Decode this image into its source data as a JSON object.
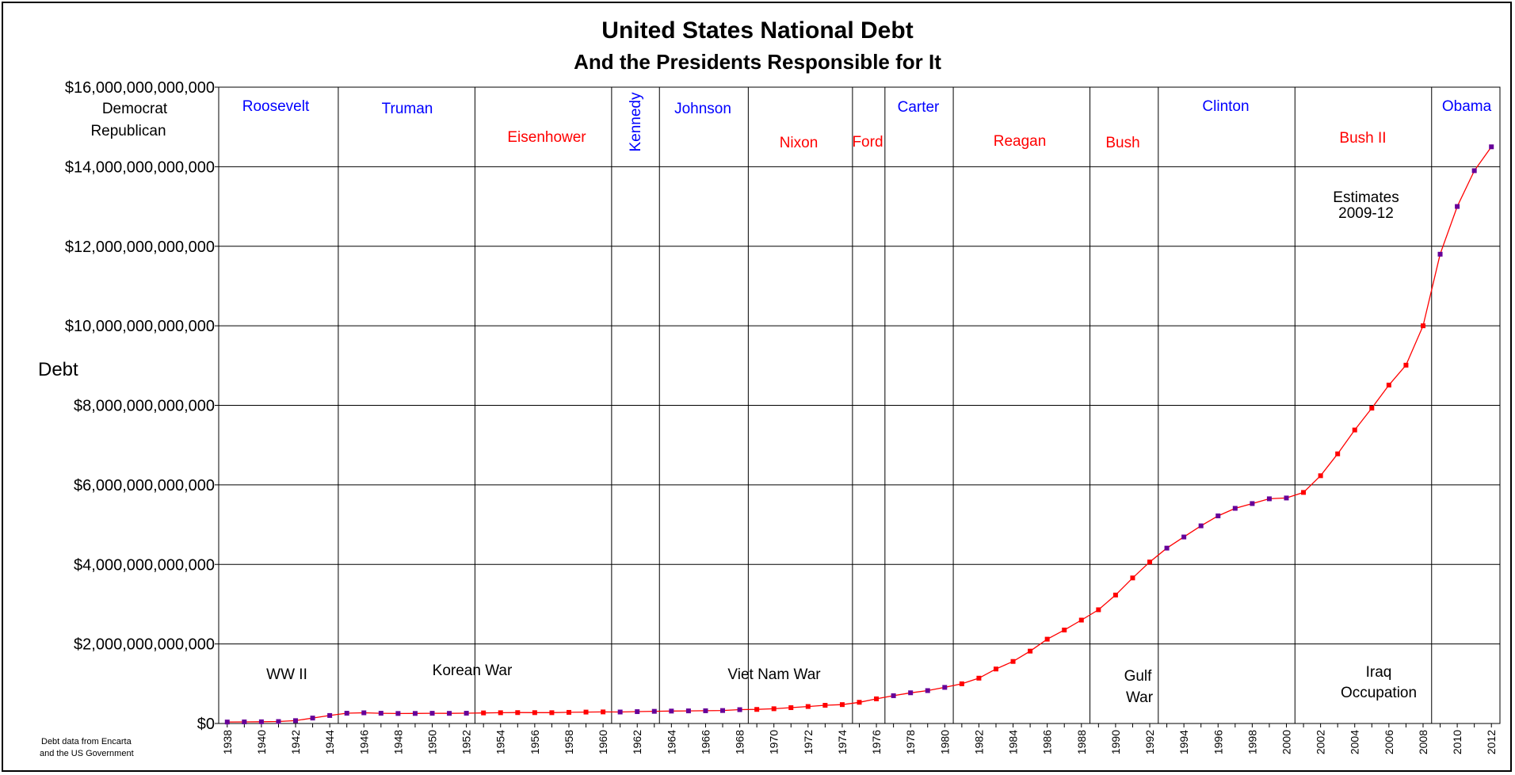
{
  "colors": {
    "democrat": "#0000ff",
    "republican": "#ff0000",
    "line": "#ff0000",
    "point_red": "#ff0000",
    "point_purple": "#660099",
    "grid": "#000000"
  },
  "chart_data": {
    "type": "line",
    "title": "United States National Debt",
    "subtitle": "And the Presidents Responsible for It",
    "ylabel": "Debt",
    "ylim": [
      0,
      16000000000000
    ],
    "xlim": [
      1937.5,
      2012.5
    ],
    "grid": true,
    "y_ticks": [
      {
        "value": 0,
        "label": "$0"
      },
      {
        "value": 2000000000000,
        "label": "$2,000,000,000,000"
      },
      {
        "value": 4000000000000,
        "label": "$4,000,000,000,000"
      },
      {
        "value": 6000000000000,
        "label": "$6,000,000,000,000"
      },
      {
        "value": 8000000000000,
        "label": "$8,000,000,000,000"
      },
      {
        "value": 10000000000000,
        "label": "$10,000,000,000,000"
      },
      {
        "value": 12000000000000,
        "label": "$12,000,000,000,000"
      },
      {
        "value": 14000000000000,
        "label": "$14,000,000,000,000"
      },
      {
        "value": 16000000000000,
        "label": "$16,000,000,000,000"
      }
    ],
    "x_ticks": [
      "1938",
      "1940",
      "1942",
      "1944",
      "1946",
      "1948",
      "1950",
      "1952",
      "1954",
      "1956",
      "1958",
      "1960",
      "1962",
      "1964",
      "1966",
      "1968",
      "1970",
      "1972",
      "1974",
      "1976",
      "1978",
      "1980",
      "1982",
      "1984",
      "1986",
      "1988",
      "1990",
      "1992",
      "1994",
      "1996",
      "1998",
      "2000",
      "2002",
      "2004",
      "2006",
      "2008",
      "2010",
      "2012"
    ],
    "series": [
      {
        "x": [
          1938,
          1939,
          1940,
          1941,
          1942,
          1943,
          1944,
          1945,
          1946,
          1947,
          1948,
          1949,
          1950,
          1951,
          1952,
          1953,
          1954,
          1955,
          1956,
          1957,
          1958,
          1959,
          1960,
          1961,
          1962,
          1963,
          1964,
          1965,
          1966,
          1967,
          1968,
          1969,
          1970,
          1971,
          1972,
          1973,
          1974,
          1975,
          1976,
          1977,
          1978,
          1979,
          1980,
          1981,
          1982,
          1983,
          1984,
          1985,
          1986,
          1987,
          1988,
          1989,
          1990,
          1991,
          1992,
          1993,
          1994,
          1995,
          1996,
          1997,
          1998,
          1999,
          2000,
          2001,
          2002,
          2003,
          2004,
          2005,
          2006,
          2007,
          2008,
          2009,
          2010,
          2011,
          2012
        ],
        "values": [
          37000000000,
          40000000000,
          43000000000,
          49000000000,
          72000000000,
          137000000000,
          201000000000,
          259000000000,
          269000000000,
          258000000000,
          252000000000,
          253000000000,
          257000000000,
          255000000000,
          259000000000,
          266000000000,
          271000000000,
          274000000000,
          273000000000,
          272000000000,
          280000000000,
          287000000000,
          291000000000,
          289000000000,
          298000000000,
          306000000000,
          312000000000,
          317000000000,
          320000000000,
          326000000000,
          348000000000,
          354000000000,
          371000000000,
          398000000000,
          427000000000,
          458000000000,
          475000000000,
          533000000000,
          620000000000,
          699000000000,
          772000000000,
          827000000000,
          908000000000,
          998000000000,
          1140000000000,
          1370000000000,
          1560000000000,
          1820000000000,
          2120000000000,
          2350000000000,
          2600000000000,
          2860000000000,
          3230000000000,
          3660000000000,
          4060000000000,
          4410000000000,
          4690000000000,
          4970000000000,
          5220000000000,
          5410000000000,
          5530000000000,
          5650000000000,
          5670000000000,
          5810000000000,
          6230000000000,
          6780000000000,
          7380000000000,
          7930000000000,
          8510000000000,
          9010000000000,
          10000000000000,
          11800000000000,
          13000000000000,
          13900000000000,
          14500000000000
        ],
        "party": [
          "D",
          "D",
          "D",
          "D",
          "D",
          "D",
          "D",
          "D",
          "D",
          "D",
          "D",
          "D",
          "D",
          "D",
          "D",
          "R",
          "R",
          "R",
          "R",
          "R",
          "R",
          "R",
          "R",
          "D",
          "D",
          "D",
          "D",
          "D",
          "D",
          "D",
          "D",
          "R",
          "R",
          "R",
          "R",
          "R",
          "R",
          "R",
          "R",
          "D",
          "D",
          "D",
          "D",
          "R",
          "R",
          "R",
          "R",
          "R",
          "R",
          "R",
          "R",
          "R",
          "R",
          "R",
          "R",
          "D",
          "D",
          "D",
          "D",
          "D",
          "D",
          "D",
          "D",
          "R",
          "R",
          "R",
          "R",
          "R",
          "R",
          "R",
          "R",
          "D",
          "D",
          "D",
          "D"
        ]
      }
    ],
    "presidents": [
      {
        "name": "Roosevelt",
        "party": "D"
      },
      {
        "name": "Truman",
        "party": "D"
      },
      {
        "name": "Eisenhower",
        "party": "R"
      },
      {
        "name": "Kennedy",
        "party": "D"
      },
      {
        "name": "Johnson",
        "party": "D"
      },
      {
        "name": "Nixon",
        "party": "R"
      },
      {
        "name": "Ford",
        "party": "R"
      },
      {
        "name": "Carter",
        "party": "D"
      },
      {
        "name": "Reagan",
        "party": "R"
      },
      {
        "name": "Bush",
        "party": "R"
      },
      {
        "name": "Clinton",
        "party": "D"
      },
      {
        "name": "Bush II",
        "party": "R"
      },
      {
        "name": "Obama",
        "party": "D"
      }
    ],
    "term_boundaries": [
      1944.5,
      1952.5,
      1960.5,
      1963.3,
      1968.5,
      1974.6,
      1976.5,
      1980.5,
      1988.5,
      1992.5,
      2000.5,
      2008.5
    ],
    "legend": {
      "democrat": "Democrat",
      "republican": "Republican"
    },
    "annotations": {
      "ww2": "WW II",
      "korea": "Korean War",
      "vietnam": "Viet Nam War",
      "gulf_line1": "Gulf",
      "gulf_line2": "War",
      "iraq_line1": "Iraq",
      "iraq_line2": "Occupation",
      "estimates_line1": "Estimates",
      "estimates_line2": "2009-12"
    },
    "source_line1": "Debt data from Encarta",
    "source_line2": "and the US Government"
  }
}
